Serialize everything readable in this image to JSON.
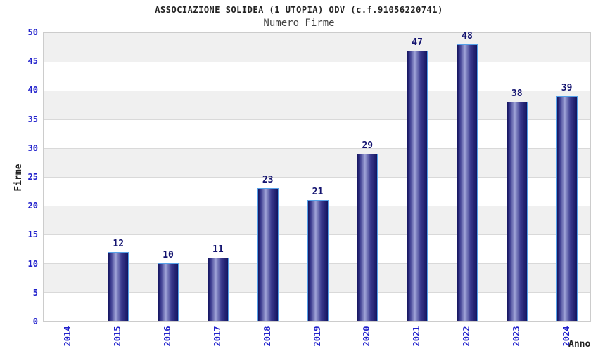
{
  "chart_data": {
    "type": "bar",
    "title": "ASSOCIAZIONE SOLIDEA (1 UTOPIA) ODV (c.f.91056220741)",
    "subtitle": "Numero Firme",
    "categories": [
      "2014",
      "2015",
      "2016",
      "2017",
      "2018",
      "2019",
      "2020",
      "2021",
      "2022",
      "2023",
      "2024"
    ],
    "values": [
      0,
      12,
      10,
      11,
      23,
      21,
      29,
      47,
      48,
      38,
      39
    ],
    "xlabel": "Anno",
    "ylabel": "Firme",
    "ylim": [
      0,
      50
    ],
    "ytick_step": 5,
    "grid": "horizontal-bands",
    "legend": "none",
    "colors": {
      "tick_label": "#2222cc",
      "value_label": "#141470",
      "title": "#222222",
      "subtitle": "#444444",
      "axis_label": "#222222",
      "band_gray": "#f0f0f0",
      "band_white": "#ffffff",
      "gridline": "#d9d9d9",
      "plot_border": "#cccccc",
      "bar_edge": "#55a0e8",
      "bar_dark": "#14145f",
      "bar_mid": "#3b3b8f",
      "bar_light": "#a0a4d8"
    }
  }
}
